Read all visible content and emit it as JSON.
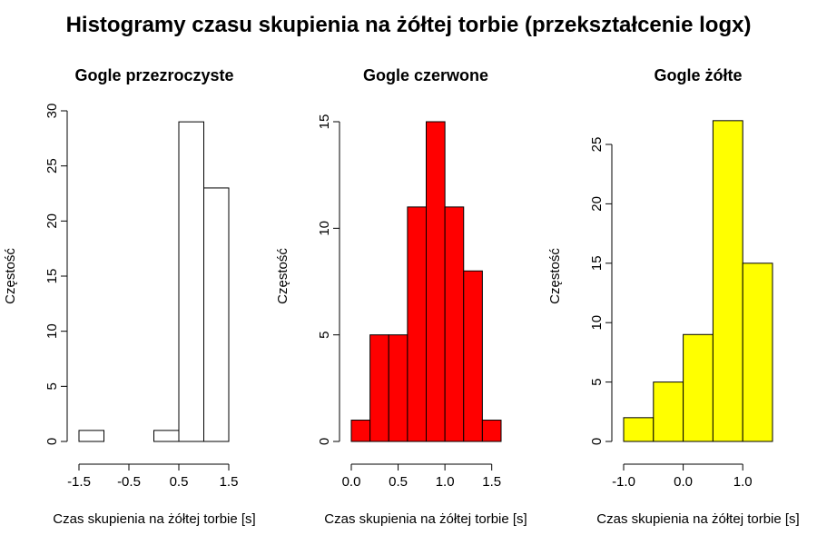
{
  "main_title": "Histogramy czasu skupienia na żółtej torbie (przekształcenie logx)",
  "chart_data": [
    {
      "type": "bar",
      "title": "Gogle przezroczyste",
      "xlabel": "Czas skupienia na żółtej torbie [s]",
      "ylabel": "Częstość",
      "bin_edges": [
        -1.5,
        -1.0,
        -0.5,
        0.0,
        0.5,
        1.0,
        1.5
      ],
      "values": [
        1,
        0,
        0,
        1,
        29,
        23
      ],
      "xlim": [
        -1.5,
        1.5
      ],
      "ylim": [
        0,
        30
      ],
      "xticks": [
        -1.5,
        -0.5,
        0.5,
        1.5
      ],
      "xtick_labels": [
        "-1.5",
        "-0.5",
        "0.5",
        "1.5"
      ],
      "yticks": [
        0,
        5,
        10,
        15,
        20,
        25,
        30
      ],
      "ytick_labels": [
        "0",
        "5",
        "10",
        "15",
        "20",
        "25",
        "30"
      ],
      "bar_color": "#ffffff"
    },
    {
      "type": "bar",
      "title": "Gogle czerwone",
      "xlabel": "Czas skupienia na żółtej torbie [s]",
      "ylabel": "Częstość",
      "bin_edges": [
        0.0,
        0.2,
        0.4,
        0.6,
        0.8,
        1.0,
        1.2,
        1.4,
        1.6
      ],
      "values": [
        1,
        5,
        5,
        11,
        15,
        11,
        8,
        1
      ],
      "xlim": [
        0.0,
        1.6
      ],
      "ylim": [
        0,
        15
      ],
      "xticks": [
        0.0,
        0.5,
        1.0,
        1.5
      ],
      "xtick_labels": [
        "0.0",
        "0.5",
        "1.0",
        "1.5"
      ],
      "yticks": [
        0,
        5,
        10,
        15
      ],
      "ytick_labels": [
        "0",
        "5",
        "10",
        "15"
      ],
      "bar_color": "#ff0000"
    },
    {
      "type": "bar",
      "title": "Gogle żółte",
      "xlabel": "Czas skupienia na żółtej torbie [s]",
      "ylabel": "Częstość",
      "bin_edges": [
        -1.0,
        -0.5,
        0.0,
        0.5,
        1.0,
        1.5
      ],
      "values": [
        2,
        5,
        9,
        27,
        15
      ],
      "xlim": [
        -1.0,
        1.5
      ],
      "ylim": [
        0,
        25
      ],
      "xticks": [
        -1.0,
        0.0,
        1.0
      ],
      "xtick_labels": [
        "-1.0",
        "0.0",
        "1.0"
      ],
      "yticks": [
        0,
        5,
        10,
        15,
        20,
        25
      ],
      "ytick_labels": [
        "0",
        "5",
        "10",
        "15",
        "20",
        "25"
      ],
      "bar_color": "#ffff00"
    }
  ]
}
